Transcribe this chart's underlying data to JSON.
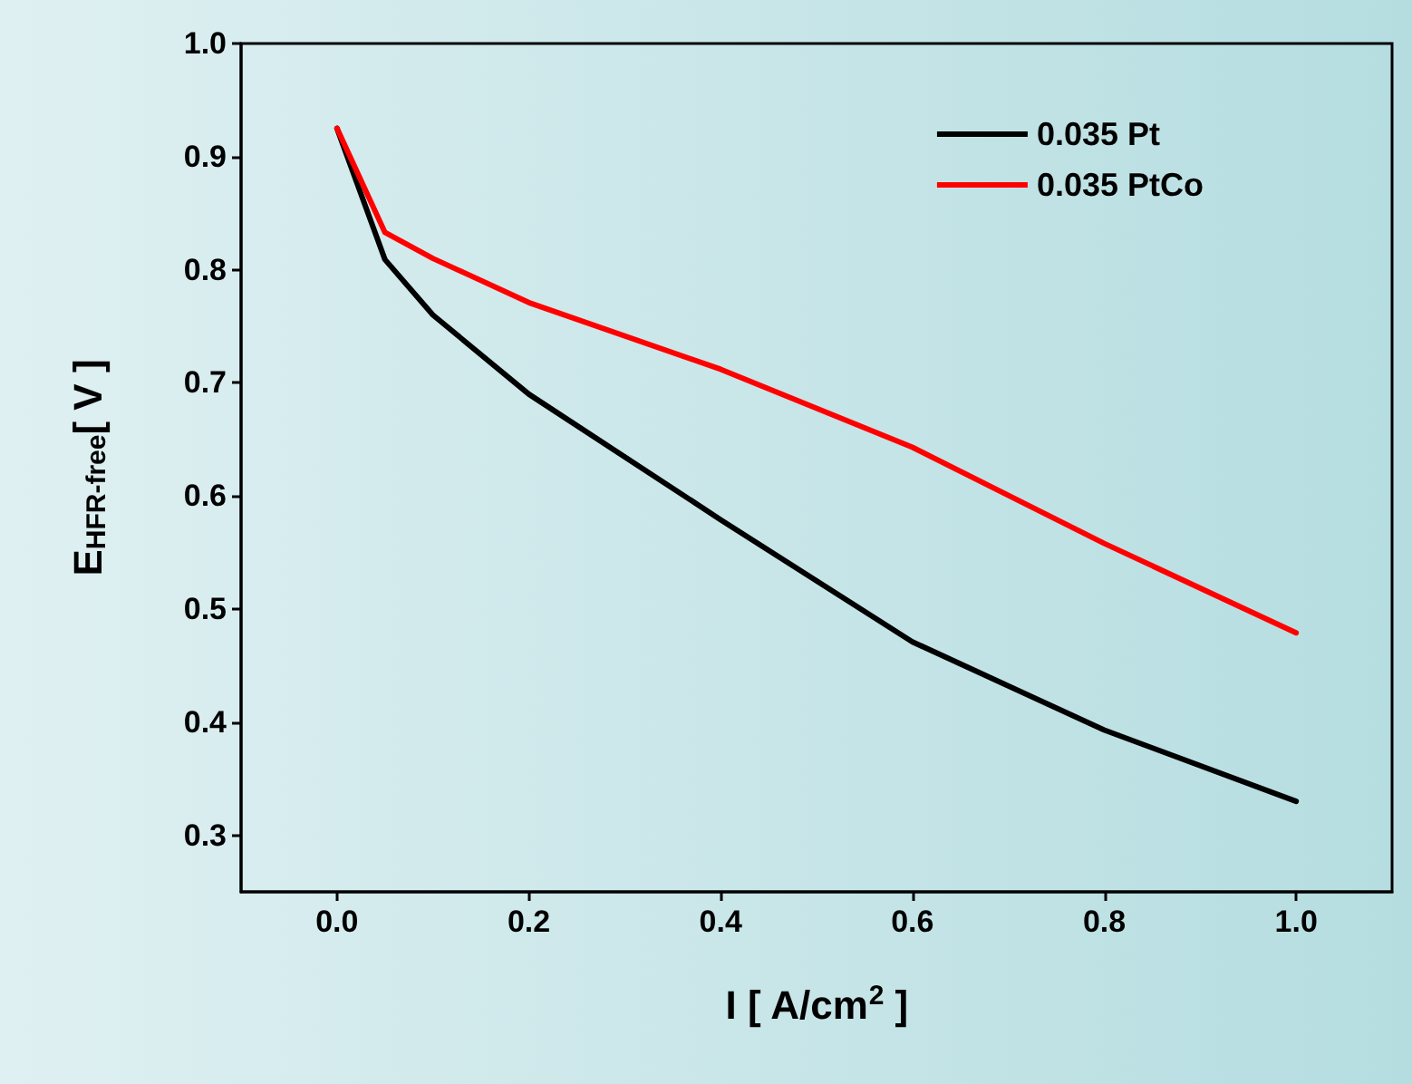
{
  "chart_data": {
    "type": "line",
    "xlabel": "I [ A/cm$^{2}$ ]",
    "ylabel": "E$_{HFR-free}$[ V ]",
    "xlim": [
      -0.1,
      1.1
    ],
    "xticks": [
      {
        "value": 0,
        "label": "0.0"
      },
      {
        "value": 0.2,
        "label": "0.2"
      },
      {
        "value": 0.4,
        "label": "0.4"
      },
      {
        "value": 0.6,
        "label": "0.6"
      },
      {
        "value": 0.8,
        "label": "0.8"
      },
      {
        "value": 1,
        "label": "1.0"
      }
    ],
    "ylim": [
      0.25,
      1.0
    ],
    "yticks": [
      0.3,
      0.4,
      0.5,
      0.6,
      0.7,
      0.8,
      0.9,
      {
        "value": 1,
        "label": "1.0"
      }
    ],
    "x": [
      0,
      0.05,
      0.1,
      0.2,
      0.4,
      0.6,
      0.8,
      1.0
    ],
    "series": [
      {
        "name": "0.035 Pt",
        "color": "#000000",
        "values": [
          0.925,
          0.809,
          0.76,
          0.69,
          0.579,
          0.471,
          0.393,
          0.33
        ]
      },
      {
        "name": "0.035 PtCo",
        "color": "#ff0000",
        "values": [
          0.925,
          0.833,
          0.81,
          0.771,
          0.712,
          0.643,
          0.558,
          0.479
        ]
      }
    ],
    "legend": "top right",
    "marker": "none",
    "line_style": "solid",
    "grid": false
  }
}
